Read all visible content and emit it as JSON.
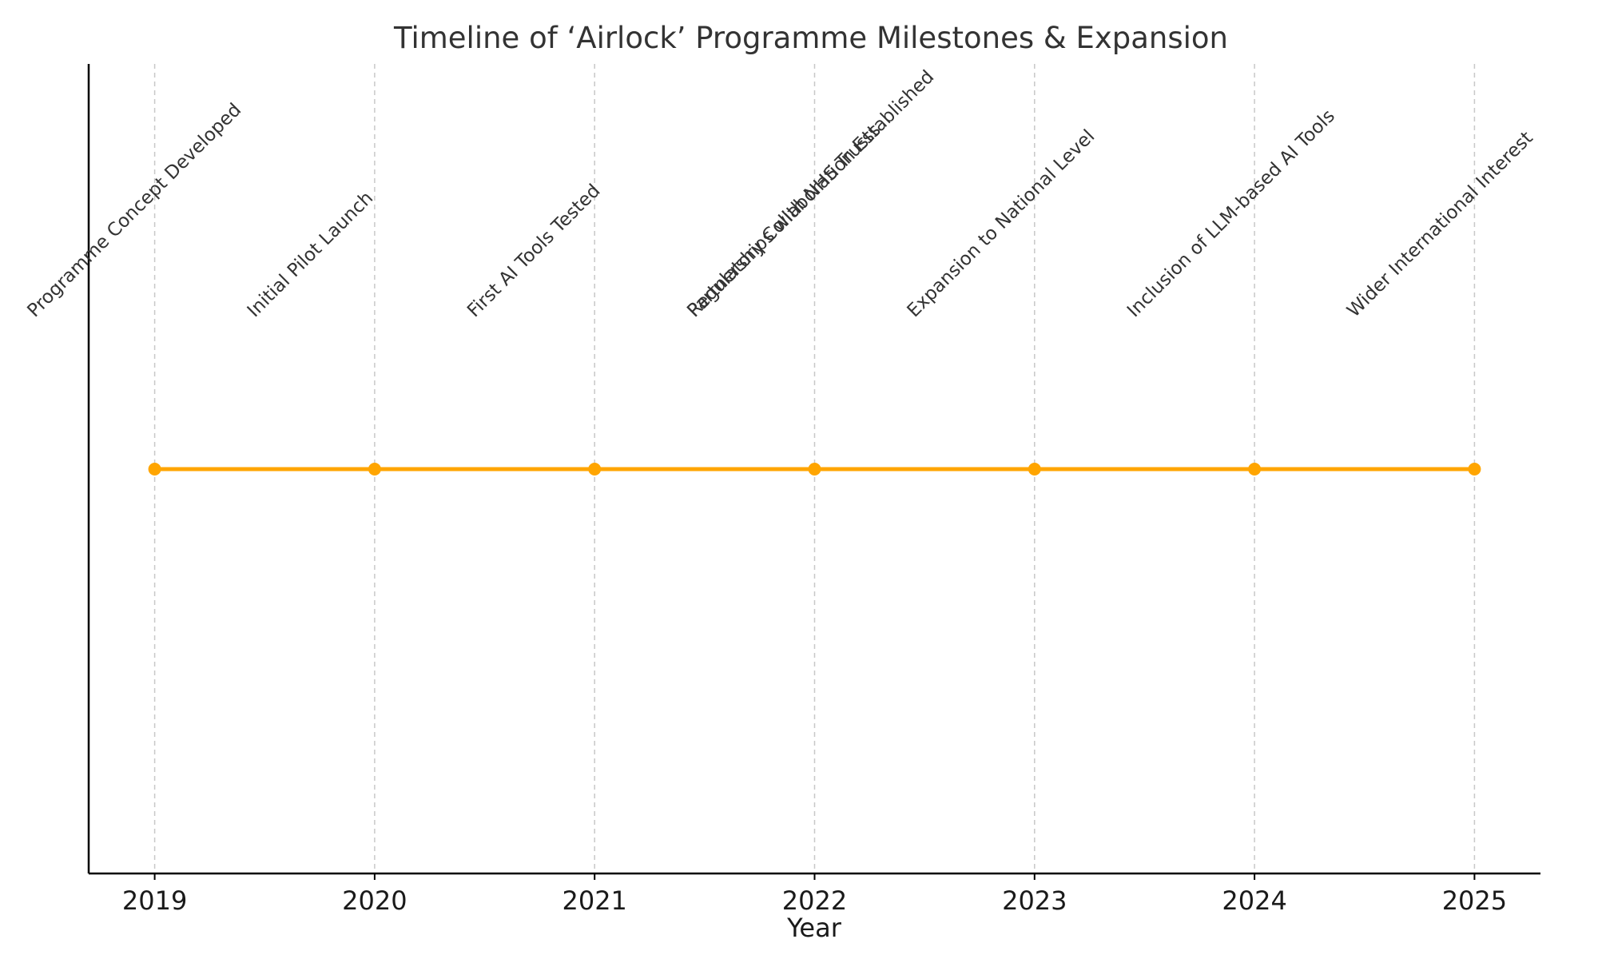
{
  "chart_data": {
    "type": "line",
    "title": "Timeline of ‘Airlock’ Programme Milestones & Expansion",
    "xlabel": "Year",
    "ylabel": "",
    "xlim": [
      2018.7,
      2025.3
    ],
    "x": [
      2019,
      2020,
      2021,
      2022,
      2023,
      2024,
      2025
    ],
    "y": [
      1,
      1,
      1,
      1,
      1,
      1,
      1
    ],
    "xticks": [
      2019,
      2020,
      2021,
      2022,
      2023,
      2024,
      2025
    ],
    "grid": "vertical dashed",
    "line_color": "#ffa500",
    "events": [
      {
        "x": 2019,
        "label": "Programme Concept Developed"
      },
      {
        "x": 2020,
        "label": "Initial Pilot Launch"
      },
      {
        "x": 2021,
        "label": "First AI Tools Tested"
      },
      {
        "x": 2022,
        "label": "Regulatory Collaboration Established"
      },
      {
        "x": 2022,
        "label": "Partnerships with NHS Trusts"
      },
      {
        "x": 2023,
        "label": "Expansion to National Level"
      },
      {
        "x": 2024,
        "label": "Inclusion of LLM-based AI Tools"
      },
      {
        "x": 2025,
        "label": "Wider International Interest"
      }
    ]
  }
}
